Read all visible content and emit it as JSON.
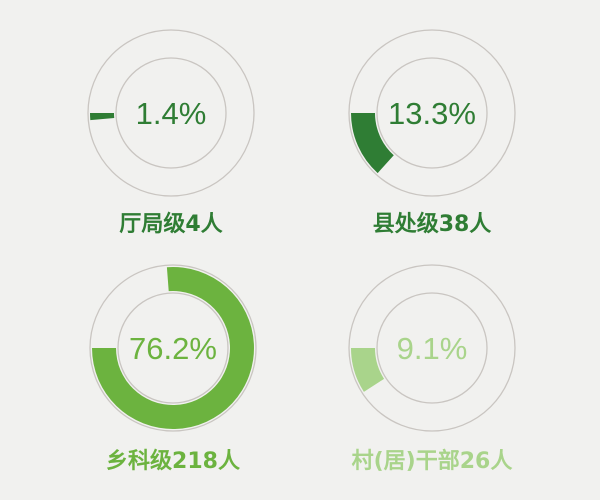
{
  "chart_data": {
    "type": "donut",
    "direction": "counterclockwise from 9 o'clock",
    "ring_color": "#c9c5c1",
    "background": "#f1f1ef",
    "items": [
      {
        "label": "厅局级4人",
        "count": 4,
        "value": 1.4,
        "value_label": "1.4%",
        "color": "#2f7d34"
      },
      {
        "label": "县处级38人",
        "count": 38,
        "value": 13.3,
        "value_label": "13.3%",
        "color": "#2f7d34"
      },
      {
        "label": "乡科级218人",
        "count": 218,
        "value": 76.2,
        "value_label": "76.2%",
        "color": "#6cb33f"
      },
      {
        "label": "村(居)干部26人",
        "count": 26,
        "value": 9.1,
        "value_label": "9.1%",
        "color": "#a9d48b"
      }
    ]
  }
}
